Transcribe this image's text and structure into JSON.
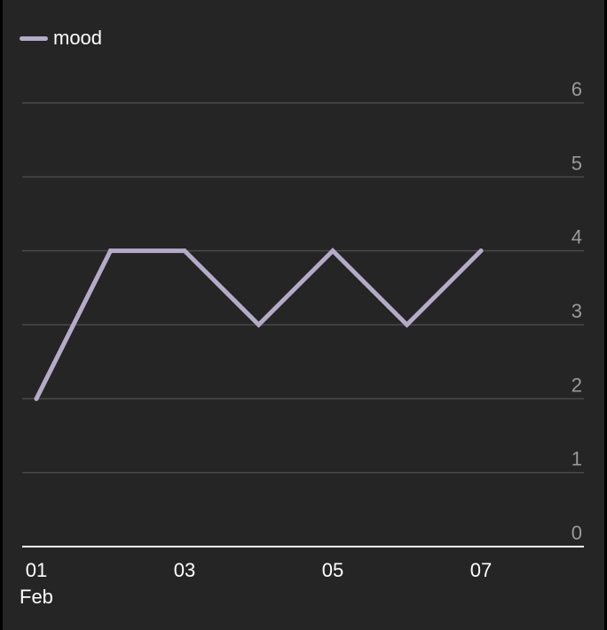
{
  "chart_data": {
    "type": "line",
    "x": [
      "01",
      "02",
      "03",
      "04",
      "05",
      "06",
      "07"
    ],
    "x_tick_labels": [
      "01",
      "03",
      "05",
      "07"
    ],
    "x_month_label": "Feb",
    "series": [
      {
        "name": "mood",
        "values": [
          2,
          4,
          4,
          3,
          4,
          3,
          4
        ],
        "color": "#b4abc9"
      }
    ],
    "ylim": [
      0,
      6
    ],
    "y_ticks": [
      "0",
      "1",
      "2",
      "3",
      "4",
      "5",
      "6"
    ],
    "y_axis_side": "right",
    "grid": true,
    "legend_position": "top-left",
    "title": "",
    "xlabel": "",
    "ylabel": ""
  },
  "colors": {
    "background": "#252525",
    "grid": "#4a4a4a",
    "axis": "#ffffff",
    "line": "#b4abc9"
  }
}
